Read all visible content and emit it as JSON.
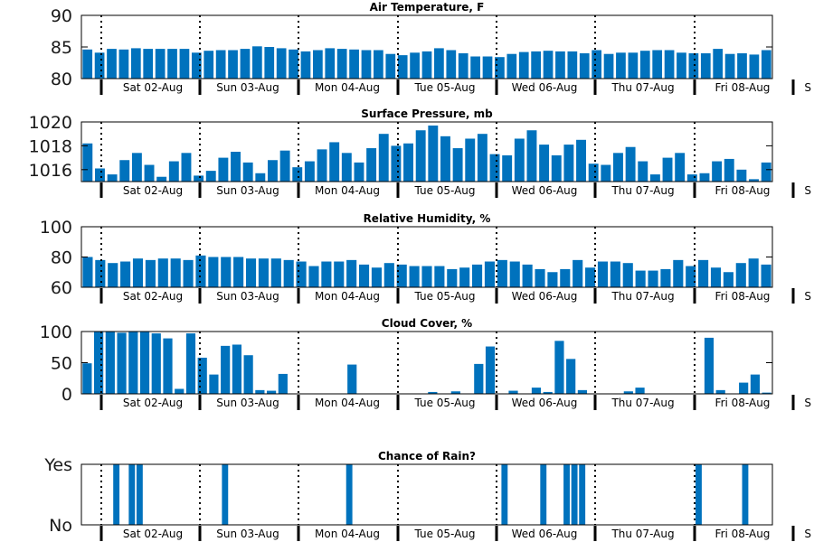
{
  "day_labels": [
    "Sat 02-Aug",
    "Sun 03-Aug",
    "Mon 04-Aug",
    "Tue 05-Aug",
    "Wed 06-Aug",
    "Thu 07-Aug",
    "Fri 08-Aug",
    "S"
  ],
  "colors": {
    "bar": "#0072BD",
    "axis": "#000000",
    "text": "#1a1a1a"
  },
  "chart_data": [
    {
      "type": "bar",
      "title": "Air Temperature, F",
      "ylim": [
        80,
        90
      ],
      "yticks": [
        {
          "value": 80,
          "label": "80"
        },
        {
          "value": 85,
          "label": "85"
        },
        {
          "value": 90,
          "label": "90"
        }
      ],
      "x_labels_ref": "day_labels",
      "series": [
        {
          "values": [
            84.6,
            84.1,
            84.7,
            84.6,
            84.8,
            84.7,
            84.7,
            84.7,
            84.7,
            84.1,
            84.4,
            84.5,
            84.5,
            84.7,
            85.1,
            85.0,
            84.8,
            84.6,
            84.3,
            84.5,
            84.8,
            84.7,
            84.6,
            84.5,
            84.5,
            83.9,
            83.7,
            84.1,
            84.3,
            84.8,
            84.5,
            84.0,
            83.5,
            83.5,
            83.4,
            83.9,
            84.2,
            84.3,
            84.4,
            84.3,
            84.3,
            84.0,
            84.5,
            83.9,
            84.1,
            84.1,
            84.4,
            84.5,
            84.5,
            84.1,
            84.0,
            84.0,
            84.7,
            83.9,
            84.0,
            83.8,
            84.5
          ]
        }
      ]
    },
    {
      "type": "bar",
      "title": "Surface Pressure, mb",
      "ylim": [
        1015,
        1020
      ],
      "yticks": [
        {
          "value": 1016,
          "label": "1016"
        },
        {
          "value": 1018,
          "label": "1018"
        },
        {
          "value": 1020,
          "label": "1020"
        }
      ],
      "x_labels_ref": "day_labels",
      "series": [
        {
          "values": [
            1018.2,
            1016.1,
            1015.6,
            1016.8,
            1017.4,
            1016.4,
            1015.4,
            1016.7,
            1017.4,
            1015.5,
            1015.9,
            1017.0,
            1017.5,
            1016.6,
            1015.7,
            1016.8,
            1017.6,
            1016.2,
            1016.7,
            1017.7,
            1018.3,
            1017.4,
            1016.6,
            1017.8,
            1019.0,
            1018.0,
            1018.2,
            1019.3,
            1019.7,
            1018.8,
            1017.8,
            1018.6,
            1019.0,
            1017.3,
            1017.2,
            1018.6,
            1019.3,
            1018.1,
            1017.2,
            1018.1,
            1018.5,
            1016.5,
            1016.4,
            1017.4,
            1017.9,
            1016.7,
            1015.6,
            1017.0,
            1017.4,
            1015.6,
            1015.7,
            1016.7,
            1016.9,
            1016.0,
            1015.2,
            1016.6
          ]
        }
      ]
    },
    {
      "type": "bar",
      "title": "Relative Humidity, %",
      "ylim": [
        60,
        100
      ],
      "yticks": [
        {
          "value": 60,
          "label": "60"
        },
        {
          "value": 80,
          "label": "80"
        },
        {
          "value": 100,
          "label": "100"
        }
      ],
      "x_labels_ref": "day_labels",
      "series": [
        {
          "values": [
            80,
            78,
            76,
            77,
            79,
            78,
            79,
            79,
            78,
            81,
            80,
            80,
            80,
            79,
            79,
            79,
            78,
            77,
            74,
            77,
            77,
            78,
            75,
            73,
            76,
            75,
            74,
            74,
            74,
            72,
            73,
            75,
            77,
            78,
            77,
            75,
            72,
            70,
            72,
            78,
            73,
            77,
            77,
            76,
            71,
            71,
            72,
            78,
            74,
            78,
            73,
            70,
            76,
            79,
            75
          ]
        }
      ]
    },
    {
      "type": "bar",
      "title": "Cloud Cover, %",
      "ylim": [
        0,
        100
      ],
      "yticks": [
        {
          "value": 0,
          "label": "0"
        },
        {
          "value": 50,
          "label": "50"
        },
        {
          "value": 100,
          "label": "100"
        }
      ],
      "x_labels_ref": "day_labels",
      "series": [
        {
          "values": [
            49,
            100,
            100,
            98,
            100,
            100,
            97,
            89,
            8,
            97,
            58,
            31,
            77,
            79,
            62,
            6,
            5,
            32,
            0,
            0,
            0,
            0,
            0,
            47,
            0,
            0,
            0,
            0,
            0,
            0,
            3,
            0,
            4,
            0,
            48,
            76,
            0,
            5,
            0,
            10,
            3,
            85,
            56,
            6,
            0,
            0,
            0,
            4,
            10,
            0,
            0,
            0,
            0,
            0,
            90,
            6,
            0,
            18,
            31,
            2
          ]
        }
      ]
    },
    {
      "type": "bar",
      "title": "Chance of Rain?",
      "ylim": [
        0,
        1
      ],
      "yticks": [
        {
          "value": 0,
          "label": "No"
        },
        {
          "value": 1,
          "label": "Yes"
        }
      ],
      "x_labels_ref": "day_labels",
      "series": [
        {
          "values": [
            0,
            0,
            0,
            0,
            1,
            0,
            1,
            1,
            0,
            0,
            0,
            0,
            0,
            0,
            0,
            0,
            0,
            0,
            1,
            0,
            0,
            0,
            0,
            0,
            0,
            0,
            0,
            0,
            0,
            0,
            0,
            0,
            0,
            0,
            1,
            0,
            0,
            0,
            0,
            0,
            0,
            0,
            0,
            0,
            0,
            0,
            0,
            0,
            0,
            0,
            0,
            0,
            0,
            0,
            1,
            0,
            0,
            0,
            0,
            1,
            0,
            0,
            1,
            1,
            1,
            0,
            0,
            0,
            0,
            0,
            0,
            0,
            0,
            0,
            0,
            0,
            0,
            0,
            0,
            1,
            0,
            0,
            0,
            0,
            0,
            1,
            0,
            0,
            0
          ]
        }
      ]
    }
  ]
}
